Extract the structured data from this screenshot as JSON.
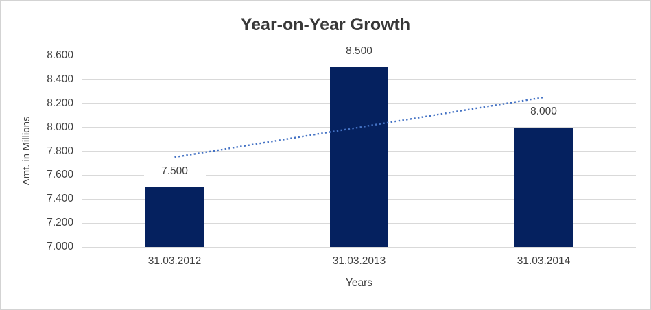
{
  "chart_data": {
    "type": "bar",
    "title": "Year-on-Year Growth",
    "xlabel": "Years",
    "ylabel": "Amt. in Millions",
    "categories": [
      "31.03.2012",
      "31.03.2013",
      "31.03.2014"
    ],
    "values": [
      7.5,
      8.5,
      8.0
    ],
    "data_labels": [
      "7.500",
      "8.500",
      "8.000"
    ],
    "ylim": [
      7.0,
      8.6
    ],
    "ytick_step": 0.2,
    "ytick_labels": [
      "7.000",
      "7.200",
      "7.400",
      "7.600",
      "7.800",
      "8.000",
      "8.200",
      "8.400",
      "8.600"
    ],
    "grid": true,
    "legend": false,
    "trendline": {
      "type": "linear",
      "values": [
        7.75,
        8.25
      ],
      "style": "dotted"
    },
    "colors": {
      "bar": "#05215f",
      "trendline": "#4472c4",
      "gridline": "#d9d9d9",
      "text": "#404040",
      "title_text": "#383838",
      "frame_border": "#d3d3d3",
      "background": "#ffffff"
    }
  }
}
